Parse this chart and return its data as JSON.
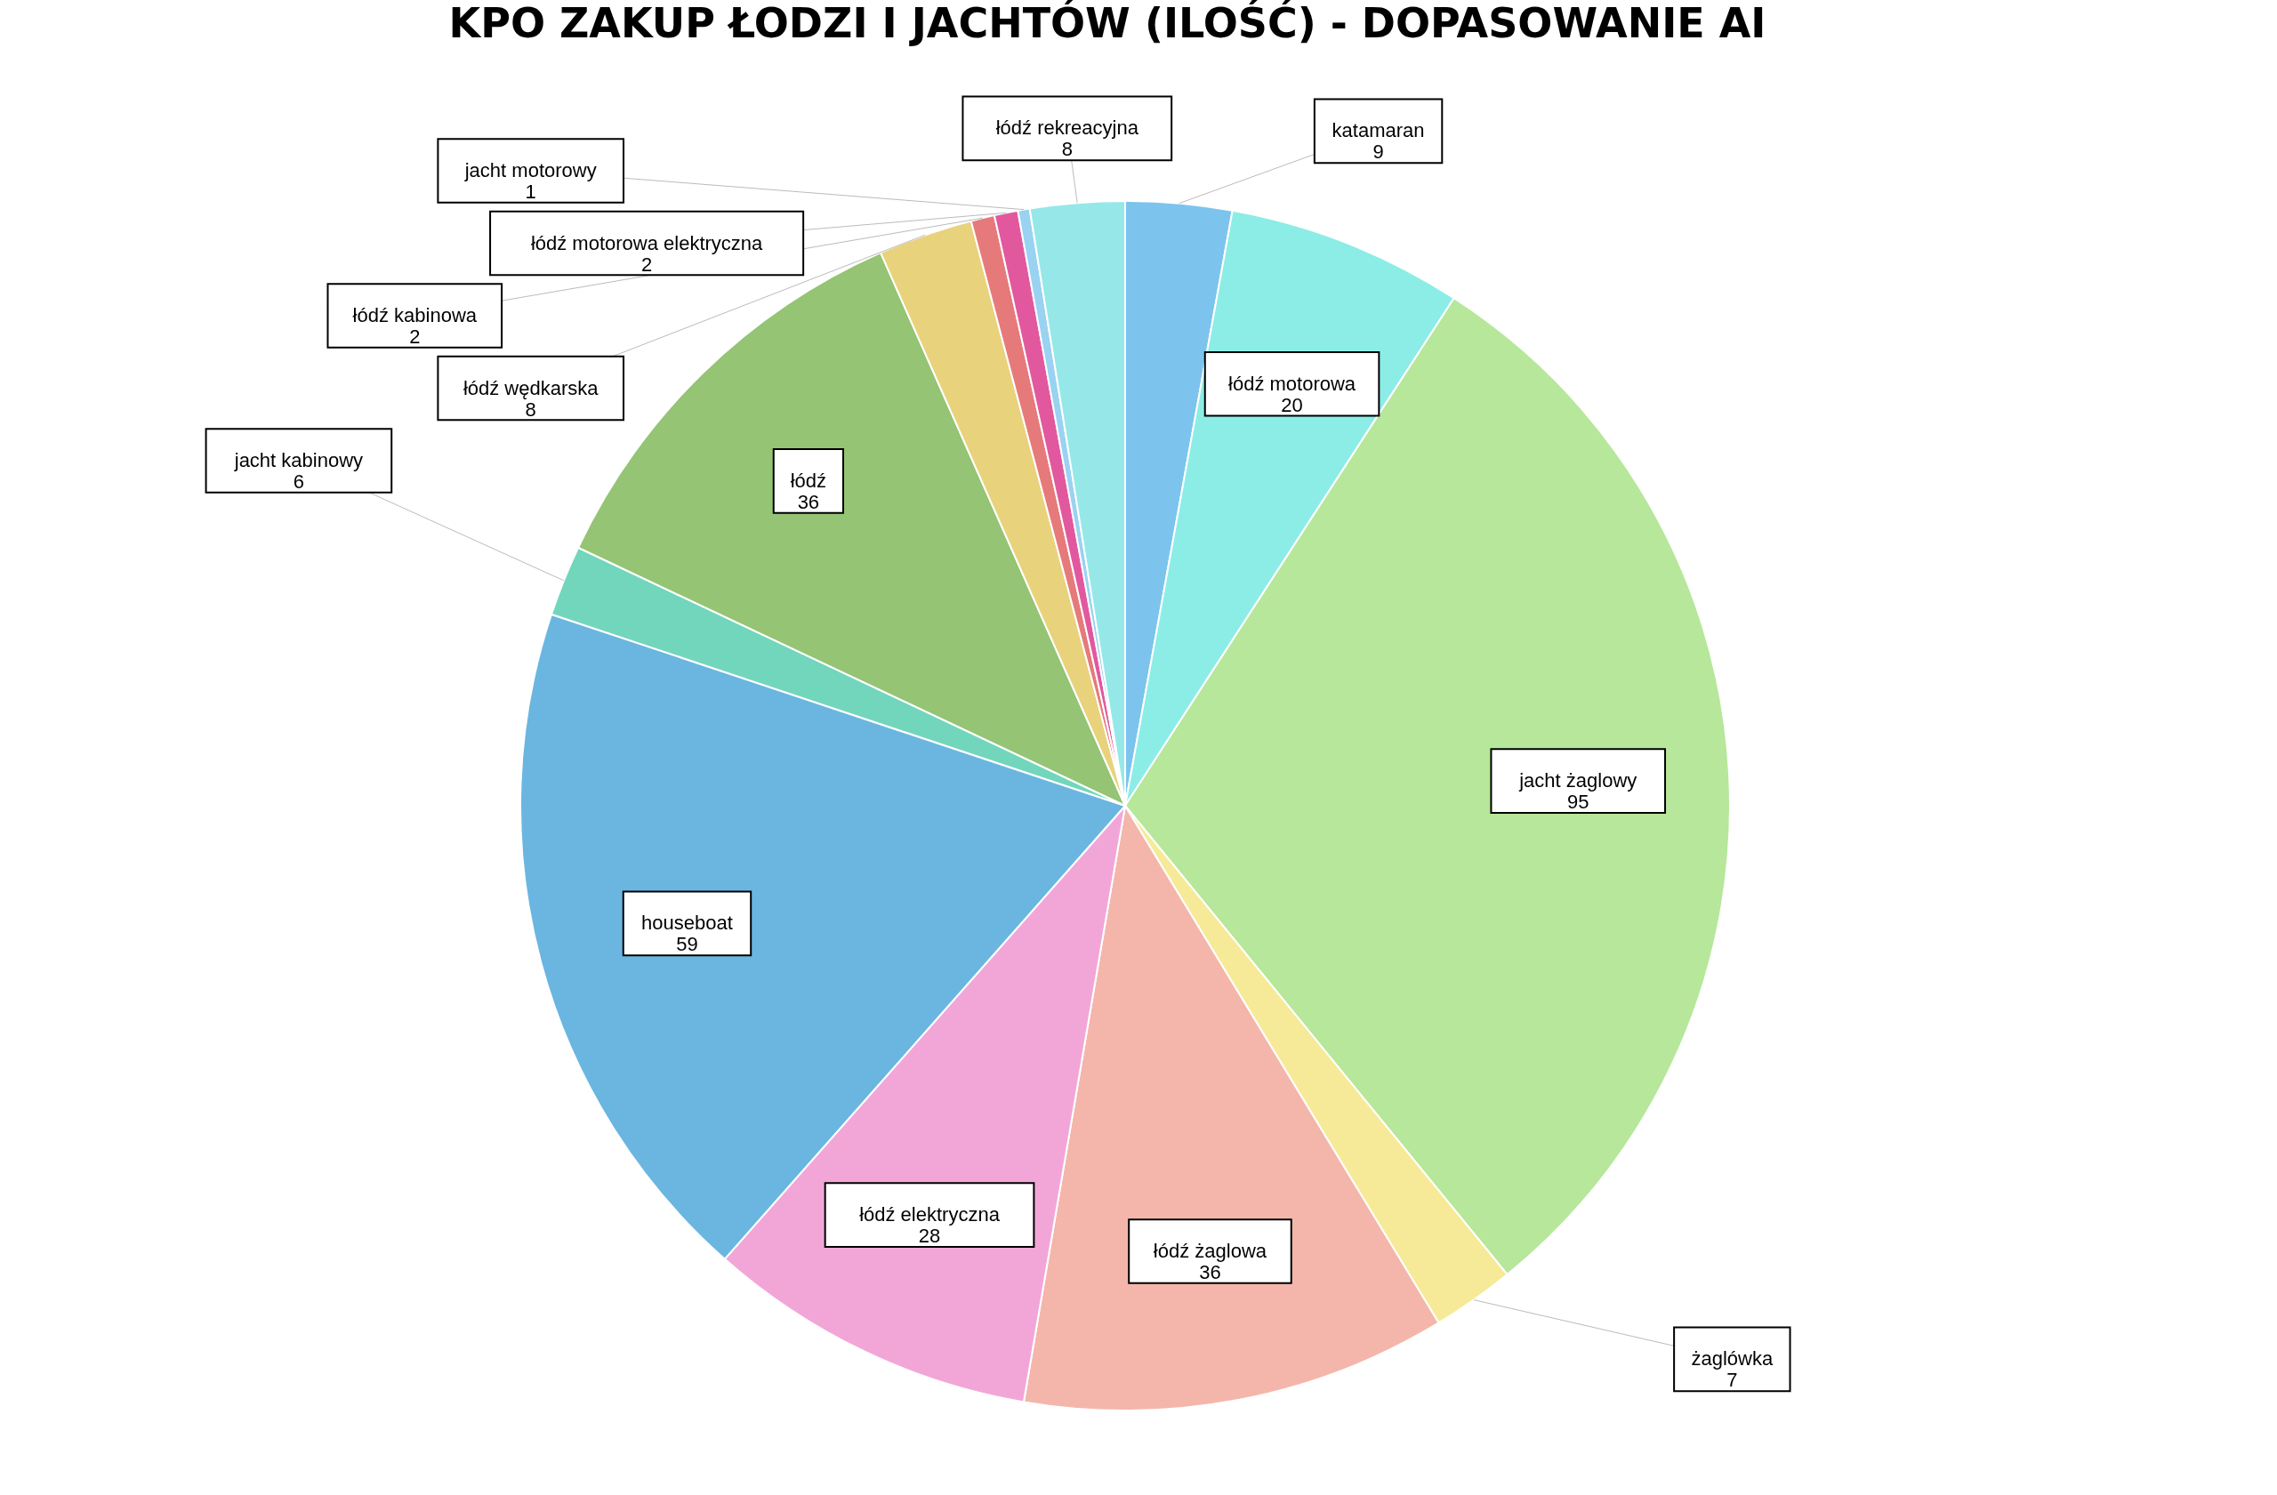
{
  "chart_data": {
    "type": "pie",
    "title": "KPO ZAKUP ŁODZI I JACHTÓW (ILOŚĆ) - DOPASOWANIE AI",
    "categories": [
      "katamaran",
      "łódź motorowa",
      "jacht żaglowy",
      "żaglówka",
      "łódź żaglowa",
      "łódź elektryczna",
      "houseboat",
      "jacht kabinowy",
      "łódź",
      "łódź wędkarska",
      "łódź kabinowa",
      "łódź motorowa elektryczna",
      "jacht motorowy",
      "łódź rekreacyjna"
    ],
    "values": [
      9,
      20,
      95,
      7,
      36,
      28,
      59,
      6,
      36,
      8,
      2,
      2,
      1,
      8
    ],
    "colors": [
      "#7cc4ee",
      "#8cede6",
      "#b6e79a",
      "#f6ea98",
      "#f4b6aa",
      "#f2a6d8",
      "#6ab6e0",
      "#72d6bc",
      "#94c474",
      "#e8d27c",
      "#e67a7a",
      "#e2589e",
      "#9ad2f2",
      "#96e8e8"
    ],
    "data_labels": true
  }
}
